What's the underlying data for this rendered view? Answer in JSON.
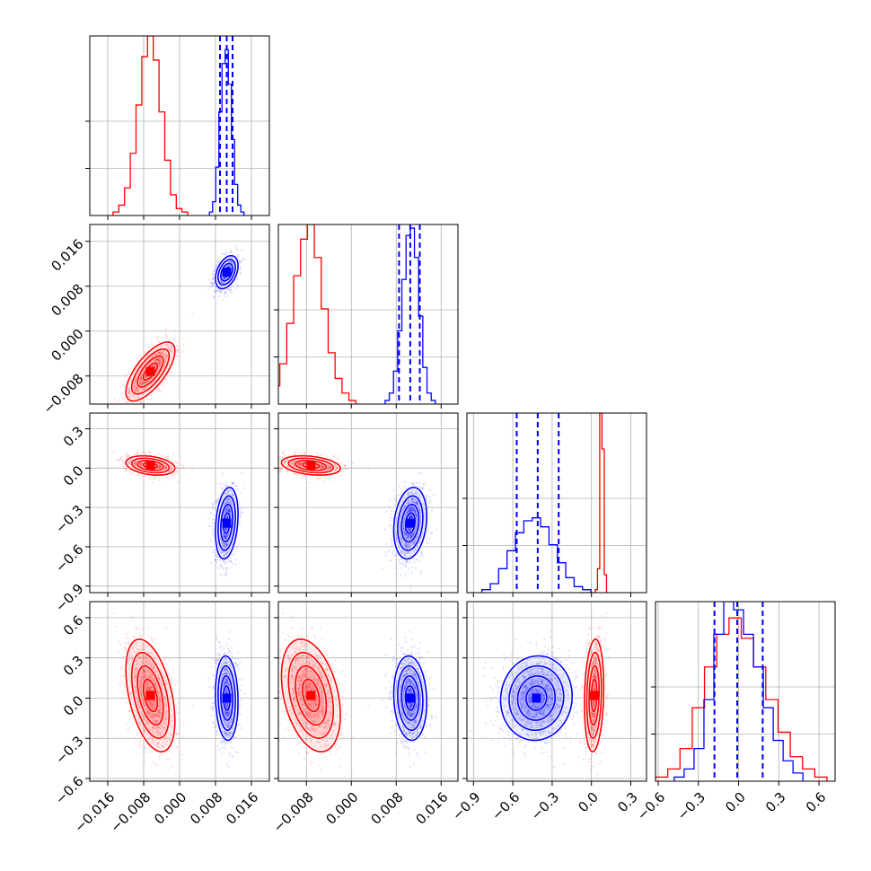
{
  "chart_data": {
    "type": "corner",
    "grid": true,
    "colors": {
      "red": "#ff0000",
      "blue": "#0000ff"
    },
    "parameters": 4,
    "axis_ranges": [
      [
        -0.02,
        0.02
      ],
      [
        -0.013,
        0.019
      ],
      [
        -0.95,
        0.42
      ],
      [
        -0.62,
        0.72
      ]
    ],
    "x_tick_labels": [
      [
        "−0.016",
        "−0.008",
        "0.000",
        "0.008",
        "0.016"
      ],
      [
        "−0.008",
        "0.000",
        "0.008",
        "0.016"
      ],
      [
        "−0.9",
        "−0.6",
        "−0.3",
        "0.0",
        "0.3"
      ],
      [
        "−0.6",
        "−0.3",
        "0.0",
        "0.3",
        "0.6"
      ]
    ],
    "y_tick_labels": {
      "row1": [
        "−0.008",
        "0.000",
        "0.008",
        "0.016"
      ],
      "row2": [
        "−0.9",
        "−0.6",
        "−0.3",
        "0.0",
        "0.3"
      ],
      "row3": [
        "−0.6",
        "−0.3",
        "0.0",
        "0.3",
        "0.6"
      ]
    },
    "tick_values": [
      [
        -0.016,
        -0.008,
        0.0,
        0.008,
        0.016
      ],
      [
        -0.008,
        0.0,
        0.008,
        0.016
      ],
      [
        -0.9,
        -0.6,
        -0.3,
        0.0,
        0.3
      ],
      [
        -0.6,
        -0.3,
        0.0,
        0.3,
        0.6
      ]
    ],
    "series": [
      {
        "color": "#ff0000",
        "mean": [
          -0.0065,
          -0.0072,
          0.02,
          0.02
        ],
        "std": [
          0.0026,
          0.0025,
          0.035,
          0.2
        ],
        "corr": [
          [
            1,
            0.7,
            -0.3,
            -0.45
          ],
          [
            0.7,
            1,
            -0.3,
            -0.35
          ],
          [
            -0.3,
            -0.3,
            1,
            0.15
          ],
          [
            -0.45,
            -0.35,
            0.15,
            1
          ]
        ],
        "hist_counts": [
          [
            1,
            3,
            8,
            18,
            32,
            46,
            52,
            45,
            30,
            16,
            6,
            2,
            1
          ],
          [
            2,
            5,
            11,
            22,
            35,
            45,
            49,
            40,
            26,
            14,
            7,
            3,
            1
          ],
          [
            0,
            0,
            0,
            0,
            0,
            0,
            0,
            1,
            8,
            60,
            48,
            6,
            0
          ],
          [
            1,
            3,
            8,
            18,
            28,
            36,
            40,
            35,
            28,
            20,
            12,
            6,
            3,
            1
          ]
        ]
      },
      {
        "color": "#0000ff",
        "mean": [
          0.0105,
          0.0105,
          -0.42,
          0.0
        ],
        "std": [
          0.0012,
          0.0014,
          0.13,
          0.15
        ],
        "corr": [
          [
            1,
            0.4,
            0.25,
            -0.1
          ],
          [
            0.4,
            1,
            0.2,
            -0.1
          ],
          [
            0.25,
            0.2,
            1,
            0.05
          ],
          [
            -0.1,
            -0.1,
            0.05,
            1
          ]
        ],
        "quantiles": [
          [
            0.009,
            0.0105,
            0.0118
          ],
          [
            0.0085,
            0.0105,
            0.0122
          ],
          [
            -0.57,
            -0.41,
            -0.25
          ],
          [
            -0.18,
            -0.01,
            0.18
          ]
        ],
        "hist_counts": [
          [
            1,
            4,
            14,
            30,
            44,
            48,
            38,
            22,
            9,
            3,
            1
          ],
          [
            1,
            3,
            9,
            20,
            34,
            46,
            48,
            40,
            24,
            10,
            3,
            1
          ],
          [
            1,
            3,
            8,
            14,
            20,
            24,
            25,
            22,
            16,
            10,
            5,
            2,
            1
          ],
          [
            1,
            3,
            8,
            20,
            36,
            44,
            42,
            36,
            28,
            18,
            10,
            5,
            2
          ]
        ]
      }
    ]
  }
}
